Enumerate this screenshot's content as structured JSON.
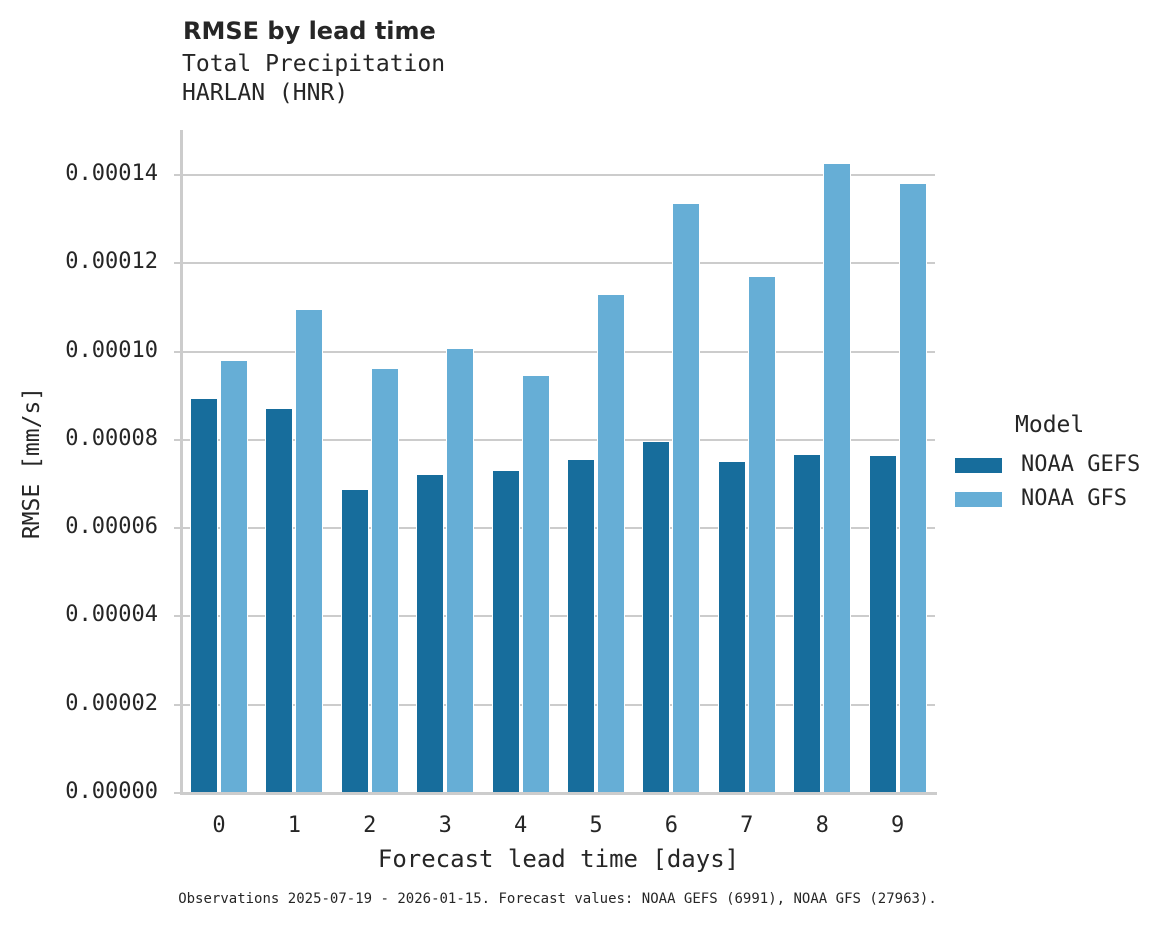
{
  "header": {
    "title": "RMSE by lead time",
    "subtitle_line1": "Total Precipitation",
    "subtitle_line2": "HARLAN (HNR)"
  },
  "axes": {
    "xlabel": "Forecast lead time [days]",
    "ylabel": "RMSE [mm/s]",
    "yticks": [
      "0.00000",
      "0.00002",
      "0.00004",
      "0.00006",
      "0.00008",
      "0.00010",
      "0.00012",
      "0.00014"
    ],
    "xticks": [
      "0",
      "1",
      "2",
      "3",
      "4",
      "5",
      "6",
      "7",
      "8",
      "9"
    ]
  },
  "legend": {
    "title": "Model",
    "items": [
      {
        "label": "NOAA GEFS",
        "color": "#176d9c"
      },
      {
        "label": "NOAA GFS",
        "color": "#66aed6"
      }
    ]
  },
  "footnote": "Observations 2025-07-19 - 2026-01-15. Forecast values: NOAA GEFS (6991), NOAA GFS (27963).",
  "colors": {
    "gefs": "#176d9c",
    "gfs": "#66aed6",
    "grid": "#cccccc",
    "text": "#262626"
  },
  "chart_data": {
    "type": "bar",
    "title": "RMSE by lead time",
    "subtitle": "Total Precipitation — HARLAN (HNR)",
    "xlabel": "Forecast lead time [days]",
    "ylabel": "RMSE [mm/s]",
    "categories": [
      "0",
      "1",
      "2",
      "3",
      "4",
      "5",
      "6",
      "7",
      "8",
      "9"
    ],
    "series": [
      {
        "name": "NOAA GEFS",
        "color": "#176d9c",
        "values": [
          8.95e-05,
          8.72e-05,
          6.89e-05,
          7.23e-05,
          7.32e-05,
          7.57e-05,
          7.97e-05,
          7.52e-05,
          7.68e-05,
          7.66e-05
        ]
      },
      {
        "name": "NOAA GFS",
        "color": "#66aed6",
        "values": [
          9.81e-05,
          0.0001097,
          9.63e-05,
          0.0001008,
          9.47e-05,
          0.000113,
          0.0001337,
          0.0001171,
          0.0001427,
          0.0001382
        ]
      }
    ],
    "ylim": [
      0,
      0.00015
    ],
    "yticks": [
      0,
      2e-05,
      4e-05,
      6e-05,
      8e-05,
      0.0001,
      0.00012,
      0.00014
    ],
    "grid": "horizontal",
    "legend_position": "right",
    "legend_title": "Model",
    "footnote": "Observations 2025-07-19 - 2026-01-15. Forecast values: NOAA GEFS (6991), NOAA GFS (27963)."
  }
}
